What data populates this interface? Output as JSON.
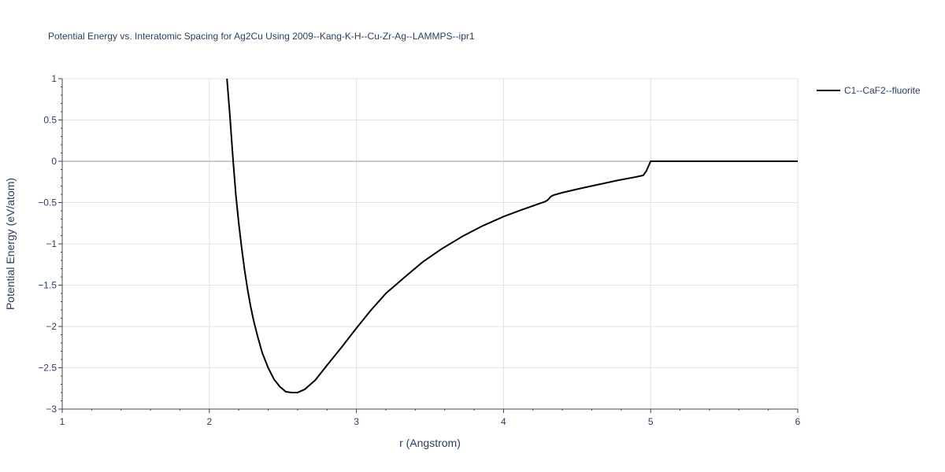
{
  "chart_data": {
    "type": "line",
    "title": "Potential Energy vs. Interatomic Spacing for Ag2Cu Using 2009--Kang-K-H--Cu-Zr-Ag--LAMMPS--ipr1",
    "xlabel": "r (Angstrom)",
    "ylabel": "Potential Energy (eV/atom)",
    "xlim": [
      1,
      6
    ],
    "ylim": [
      -3,
      1
    ],
    "xticks": [
      1,
      2,
      3,
      4,
      5,
      6
    ],
    "xtick_labels": [
      "1",
      "2",
      "3",
      "4",
      "5",
      "6"
    ],
    "yticks": [
      1,
      0.5,
      0,
      -0.5,
      -1,
      -1.5,
      -2,
      -2.5,
      -3
    ],
    "ytick_labels": [
      "1",
      "0.5",
      "0",
      "−0.5",
      "−1",
      "−1.5",
      "−2",
      "−2.5",
      "−3"
    ],
    "grid": true,
    "legend_position": "top-right",
    "series": [
      {
        "name": "C1--CaF2--fluorite",
        "color": "#000000",
        "x": [
          2.12,
          2.14,
          2.16,
          2.18,
          2.2,
          2.22,
          2.24,
          2.26,
          2.28,
          2.3,
          2.33,
          2.36,
          2.4,
          2.44,
          2.48,
          2.52,
          2.56,
          2.6,
          2.65,
          2.72,
          2.8,
          2.9,
          3.0,
          3.1,
          3.2,
          3.33,
          3.45,
          3.58,
          3.72,
          3.86,
          4.0,
          4.12,
          4.28,
          4.3,
          4.32,
          4.34,
          4.4,
          4.52,
          4.65,
          4.78,
          4.9,
          4.95,
          4.97,
          5.0,
          5.3,
          5.6,
          6.0
        ],
        "y": [
          1.0,
          0.55,
          0.05,
          -0.4,
          -0.75,
          -1.05,
          -1.32,
          -1.55,
          -1.75,
          -1.92,
          -2.13,
          -2.32,
          -2.5,
          -2.64,
          -2.73,
          -2.79,
          -2.8,
          -2.8,
          -2.76,
          -2.65,
          -2.47,
          -2.25,
          -2.02,
          -1.8,
          -1.6,
          -1.4,
          -1.22,
          -1.06,
          -0.91,
          -0.78,
          -0.67,
          -0.59,
          -0.49,
          -0.47,
          -0.43,
          -0.41,
          -0.38,
          -0.33,
          -0.28,
          -0.23,
          -0.19,
          -0.17,
          -0.12,
          0.0,
          0.0,
          0.0,
          0.0
        ]
      }
    ]
  }
}
